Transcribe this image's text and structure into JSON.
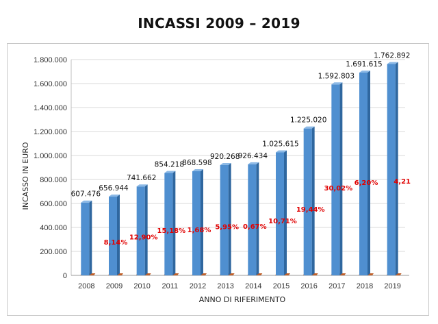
{
  "chart_data": {
    "type": "bar",
    "title": "INCASSI 2009 – 2019",
    "xlabel": "ANNO DI RIFERIMENTO",
    "ylabel": "INCASSO IN EURO",
    "categories": [
      "2008",
      "2009",
      "2010",
      "2011",
      "2012",
      "2013",
      "2014",
      "2015",
      "2016",
      "2017",
      "2018",
      "2019"
    ],
    "ylim": [
      0,
      1800000
    ],
    "yticks": [
      0,
      200000,
      400000,
      600000,
      800000,
      1000000,
      1200000,
      1400000,
      1600000,
      1800000
    ],
    "ytick_labels": [
      "0",
      "200.000",
      "400.000",
      "600.000",
      "800.000",
      "1.000.000",
      "1.200.000",
      "1.400.000",
      "1.600.000",
      "1.800.000"
    ],
    "series": [
      {
        "values": [
          607476,
          656944,
          741662,
          854218,
          868598,
          920268,
          926434,
          1025615,
          1225020,
          1592803,
          1691615,
          1762892
        ],
        "labels": [
          "607.476",
          "656.944",
          "741.662",
          "854.218",
          "868.598",
          "920.268",
          "926.434",
          "1.025.615",
          "1.225.020",
          "1.592.803",
          "1.691.615",
          "1.762.892"
        ],
        "color": "#4f8fd0"
      }
    ],
    "percent_labels": [
      "",
      "8,14%",
      "12,90%",
      "15,18%",
      "1,68%",
      "5,95%",
      "0,67%",
      "10,71%",
      "19,44%",
      "30,02%",
      "6,20%",
      "4,21"
    ],
    "percent_color": "#e00000",
    "grid": true
  }
}
